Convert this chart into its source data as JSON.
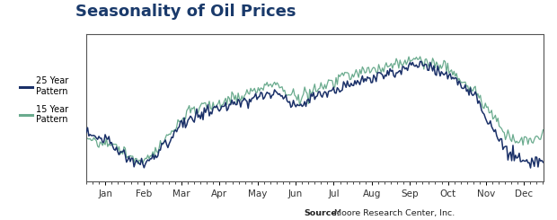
{
  "title": "Seasonality of Oil Prices",
  "title_color": "#1a3a6b",
  "title_fontsize": 13,
  "title_fontweight": "bold",
  "source_bold": "Source:",
  "source_rest": " Moore Research Center, Inc.",
  "legend_25": "25 Year\nPattern",
  "legend_15": "15 Year\nPattern",
  "color_25": "#1a3068",
  "color_15": "#6aab8e",
  "background_color": "#ffffff",
  "plot_bg_color": "#ffffff",
  "month_labels": [
    "Jan",
    "Feb",
    "Mar",
    "Apr",
    "May",
    "Jun",
    "Jul",
    "Aug",
    "Sep",
    "Oct",
    "Nov",
    "Dec"
  ],
  "noise_scale_25": 0.38,
  "noise_scale_15": 0.42,
  "seed": 17
}
